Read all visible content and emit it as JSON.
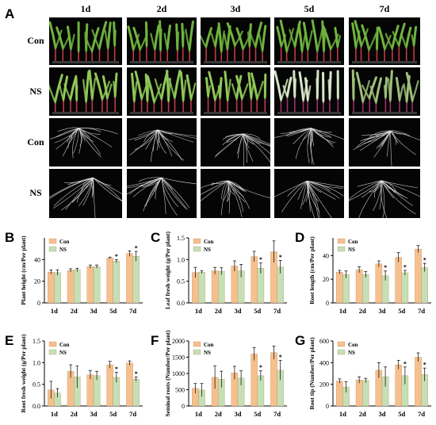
{
  "panel_a": {
    "letter": "A",
    "columns": [
      "1d",
      "2d",
      "3d",
      "5d",
      "7d"
    ],
    "rows": [
      "Con",
      "NS",
      "Con",
      "NS"
    ]
  },
  "chart_data": [
    {
      "letter": "B",
      "type": "bar",
      "categories": [
        "1d",
        "2d",
        "3d",
        "5d",
        "7d"
      ],
      "series": [
        {
          "name": "Con",
          "values": [
            28.5,
            30.0,
            33.5,
            41.5,
            45.5
          ],
          "errors": [
            2.0,
            1.5,
            1.5,
            0.8,
            2.5
          ],
          "color": "#f6c08e"
        },
        {
          "name": "NS",
          "values": [
            28.0,
            30.5,
            33.5,
            38.5,
            43.0
          ],
          "errors": [
            2.5,
            1.5,
            1.5,
            1.5,
            4.5
          ],
          "color": "#c5e0b4"
        }
      ],
      "significance": [
        "",
        "",
        "",
        "*",
        "*"
      ],
      "ylabel": "Plant height (cm/Per plant)",
      "ylim": [
        0,
        60
      ],
      "yticks": [
        0,
        20,
        40
      ],
      "legend": "top-left"
    },
    {
      "letter": "C",
      "type": "bar",
      "categories": [
        "1d",
        "2d",
        "3d",
        "5d",
        "7d"
      ],
      "series": [
        {
          "name": "Con",
          "values": [
            0.7,
            0.74,
            0.85,
            1.07,
            1.18
          ],
          "errors": [
            0.12,
            0.08,
            0.12,
            0.12,
            0.25
          ],
          "color": "#f6c08e"
        },
        {
          "name": "NS",
          "values": [
            0.71,
            0.73,
            0.74,
            0.8,
            0.83
          ],
          "errors": [
            0.03,
            0.08,
            0.15,
            0.12,
            0.15
          ],
          "color": "#c5e0b4"
        }
      ],
      "significance": [
        "",
        "",
        "",
        "*",
        "*"
      ],
      "ylabel": "Leaf fresh weight (g/Per plant)",
      "ylim": [
        0,
        1.5
      ],
      "yticks": [
        0.0,
        0.5,
        1.0,
        1.5
      ],
      "legend": "top-left"
    },
    {
      "letter": "D",
      "type": "bar",
      "categories": [
        "1d",
        "2d",
        "3d",
        "5d",
        "7d"
      ],
      "series": [
        {
          "name": "Con",
          "values": [
            26.0,
            28.0,
            33.0,
            38.5,
            45.5
          ],
          "errors": [
            1.5,
            2.5,
            2.5,
            4.0,
            3.0
          ],
          "color": "#f6c08e"
        },
        {
          "name": "NS",
          "values": [
            24.0,
            24.0,
            23.0,
            25.5,
            30.0
          ],
          "errors": [
            3.0,
            2.5,
            4.0,
            2.0,
            3.5
          ],
          "color": "#c5e0b4"
        }
      ],
      "significance": [
        "",
        "",
        "*",
        "*",
        "*"
      ],
      "ylabel": "Root length (cm/Per plant)",
      "ylim": [
        0,
        55
      ],
      "yticks": [
        0,
        20,
        40
      ],
      "legend": "top-left"
    },
    {
      "letter": "E",
      "type": "bar",
      "categories": [
        "1d",
        "2d",
        "3d",
        "5d",
        "7d"
      ],
      "series": [
        {
          "name": "Con",
          "values": [
            0.37,
            0.8,
            0.72,
            0.95,
            0.99
          ],
          "errors": [
            0.2,
            0.15,
            0.1,
            0.08,
            0.05
          ],
          "color": "#f6c08e"
        },
        {
          "name": "NS",
          "values": [
            0.3,
            0.67,
            0.7,
            0.66,
            0.62
          ],
          "errors": [
            0.1,
            0.25,
            0.1,
            0.12,
            0.05
          ],
          "color": "#c5e0b4"
        }
      ],
      "significance": [
        "",
        "",
        "",
        "*",
        "*"
      ],
      "ylabel": "Root fresh weight (g/Per plant)",
      "ylim": [
        0,
        1.5
      ],
      "yticks": [
        0.0,
        0.5,
        1.0,
        1.5
      ],
      "legend": "top-left"
    },
    {
      "letter": "F",
      "type": "bar",
      "categories": [
        "1d",
        "2d",
        "3d",
        "5d",
        "7d"
      ],
      "series": [
        {
          "name": "Con",
          "values": [
            540,
            880,
            1020,
            1600,
            1640
          ],
          "errors": [
            150,
            350,
            200,
            200,
            200
          ],
          "color": "#f6c08e"
        },
        {
          "name": "NS",
          "values": [
            490,
            820,
            860,
            930,
            1100
          ],
          "errors": [
            200,
            250,
            220,
            150,
            300
          ],
          "color": "#c5e0b4"
        }
      ],
      "significance": [
        "",
        "",
        "",
        "*",
        "*"
      ],
      "ylabel": "Seminal roots (Number/Per plant)",
      "ylim": [
        0,
        2000
      ],
      "yticks": [
        0,
        500,
        1000,
        1500,
        2000
      ],
      "legend": "top-left"
    },
    {
      "letter": "G",
      "type": "bar",
      "categories": [
        "1d",
        "2d",
        "3d",
        "5d",
        "7d"
      ],
      "series": [
        {
          "name": "Con",
          "values": [
            230,
            240,
            330,
            380,
            450
          ],
          "errors": [
            20,
            30,
            70,
            40,
            40
          ],
          "color": "#f6c08e"
        },
        {
          "name": "NS",
          "values": [
            175,
            235,
            270,
            280,
            290
          ],
          "errors": [
            50,
            20,
            90,
            80,
            60
          ],
          "color": "#c5e0b4"
        }
      ],
      "significance": [
        "",
        "",
        "",
        "*",
        "*"
      ],
      "ylabel": "Root tip (Number/Per plant)",
      "ylim": [
        0,
        600
      ],
      "yticks": [
        0,
        200,
        400,
        600
      ],
      "legend": "top-left"
    }
  ]
}
